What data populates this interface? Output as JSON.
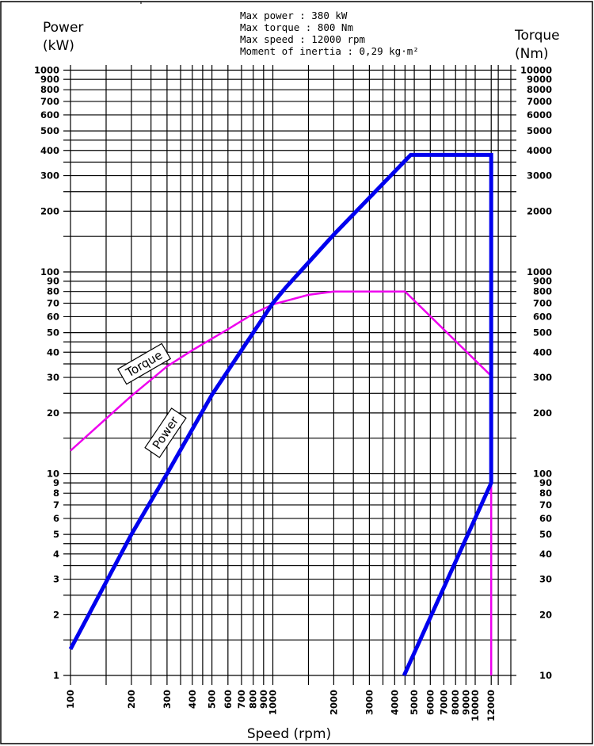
{
  "info": {
    "lines": [
      "Max power : 380 kW",
      "Max torque : 800 Nm",
      "Max speed : 12000 rpm",
      "Moment of inertia : 0,29 kg·m²"
    ]
  },
  "chart_data": {
    "type": "line",
    "title": "",
    "xlabel": "Speed (rpm)",
    "ylabel_left": [
      "Power",
      "(kW)"
    ],
    "ylabel_right": [
      "Torque",
      "(Nm)"
    ],
    "x_scale": "log",
    "y_scale": "log",
    "xlim": [
      100,
      15000
    ],
    "ylim_left": [
      1,
      1000
    ],
    "ylim_right": [
      10,
      10000
    ],
    "grid": true,
    "x_ticks": [
      100,
      200,
      300,
      400,
      500,
      600,
      700,
      800,
      900,
      1000,
      2000,
      3000,
      4000,
      5000,
      6000,
      7000,
      8000,
      9000,
      10000,
      12000
    ],
    "x_gridlines": [
      100,
      150,
      200,
      250,
      300,
      350,
      400,
      450,
      500,
      600,
      700,
      800,
      900,
      1000,
      1500,
      2000,
      2500,
      3000,
      3500,
      4000,
      4500,
      5000,
      6000,
      7000,
      8000,
      9000,
      10000,
      12000,
      13000,
      15000
    ],
    "y_left_ticks": [
      1,
      2,
      3,
      4,
      5,
      6,
      7,
      8,
      9,
      10,
      20,
      30,
      40,
      50,
      60,
      70,
      80,
      90,
      100,
      200,
      300,
      400,
      500,
      600,
      700,
      800,
      900,
      1000
    ],
    "y_right_ticks": [
      10,
      20,
      30,
      40,
      50,
      60,
      70,
      80,
      90,
      100,
      200,
      300,
      400,
      500,
      600,
      700,
      800,
      900,
      1000,
      2000,
      3000,
      4000,
      5000,
      6000,
      7000,
      8000,
      9000,
      10000
    ],
    "y_gridlines_left": [
      1,
      1.5,
      2,
      2.5,
      3,
      3.5,
      4,
      4.5,
      5,
      6,
      7,
      8,
      9,
      10,
      15,
      20,
      25,
      30,
      35,
      40,
      45,
      50,
      60,
      70,
      80,
      90,
      100,
      150,
      200,
      250,
      300,
      350,
      400,
      450,
      500,
      600,
      700,
      800,
      900,
      1000
    ],
    "series": [
      {
        "name": "Power",
        "axis": "left",
        "color": "#0000ee",
        "x": [
          100,
          200,
          300,
          500,
          800,
          1000,
          1150,
          2000,
          4800,
          12000,
          12000,
          4450
        ],
        "y": [
          1.35,
          5,
          10,
          24.6,
          50,
          70,
          83,
          153,
          380,
          380,
          9,
          1
        ]
      },
      {
        "name": "Torque",
        "axis": "right",
        "color": "#ee00ee",
        "x": [
          100,
          200,
          300,
          400,
          600,
          800,
          1000,
          1500,
          2000,
          4500,
          12000,
          12000
        ],
        "y": [
          130,
          243,
          340,
          409,
          520,
          620,
          690,
          770,
          800,
          800,
          305,
          10
        ]
      }
    ]
  }
}
